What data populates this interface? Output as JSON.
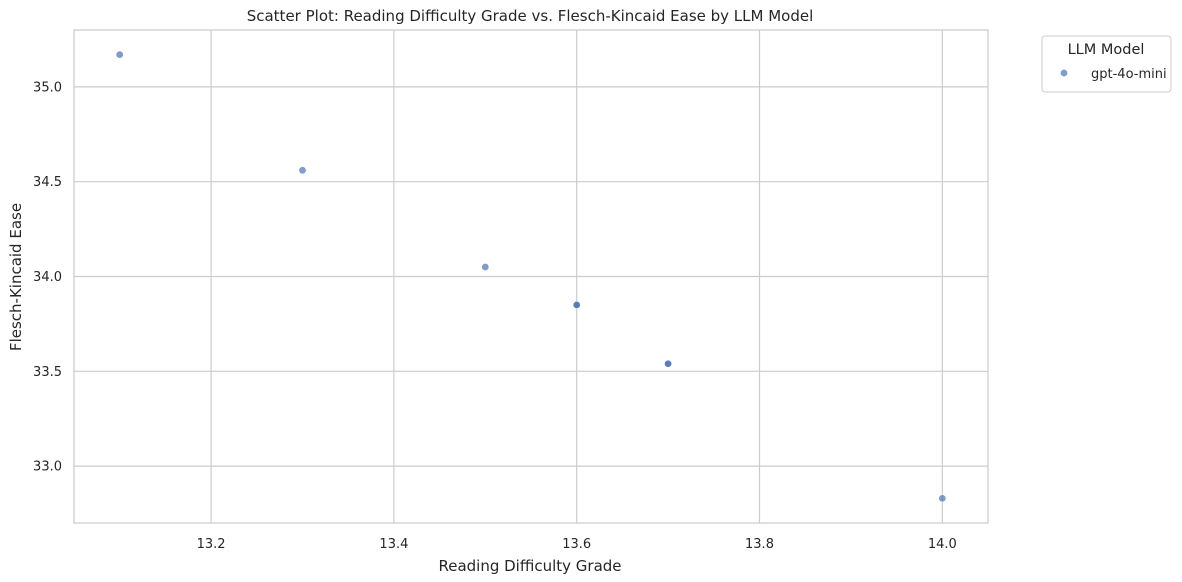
{
  "chart_data": {
    "type": "scatter",
    "title": "Scatter Plot: Reading Difficulty Grade vs. Flesch-Kincaid Ease by LLM Model",
    "xlabel": "Reading Difficulty Grade",
    "ylabel": "Flesch-Kincaid Ease",
    "xlim": [
      13.05,
      14.05
    ],
    "ylim": [
      32.7,
      35.3
    ],
    "xticks": [
      13.2,
      13.4,
      13.6,
      13.8,
      14.0
    ],
    "xtick_labels": [
      "13.2",
      "13.4",
      "13.6",
      "13.8",
      "14.0"
    ],
    "yticks": [
      33.0,
      33.5,
      34.0,
      34.5,
      35.0
    ],
    "ytick_labels": [
      "33.0",
      "33.5",
      "34.0",
      "34.5",
      "35.0"
    ],
    "grid": true,
    "legend": {
      "title": "LLM Model",
      "placement": "outside-top-right"
    },
    "series": [
      {
        "name": "gpt-4o-mini",
        "color": "#4c72b0",
        "points": [
          {
            "x": 13.1,
            "y": 35.17
          },
          {
            "x": 13.3,
            "y": 34.56
          },
          {
            "x": 13.5,
            "y": 34.05
          },
          {
            "x": 13.6,
            "y": 33.85
          },
          {
            "x": 13.6,
            "y": 33.85
          },
          {
            "x": 13.7,
            "y": 33.54
          },
          {
            "x": 13.7,
            "y": 33.54
          },
          {
            "x": 14.0,
            "y": 32.83
          }
        ]
      }
    ]
  }
}
